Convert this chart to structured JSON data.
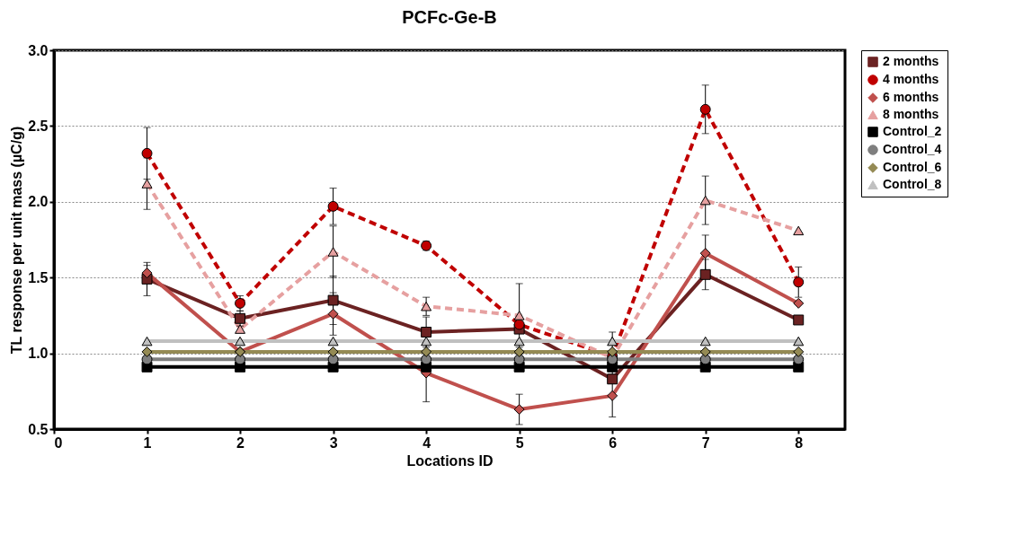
{
  "chart_data": {
    "type": "line",
    "title": "PCFc-Ge-B",
    "xlabel": "Locations ID",
    "ylabel": "TL response per unit mass (µC/g)",
    "x": [
      1,
      2,
      3,
      4,
      5,
      6,
      7,
      8
    ],
    "series": [
      {
        "name": "2 months",
        "color": "#6b2222",
        "marker": "square",
        "line_style": "solid",
        "values": [
          1.49,
          1.23,
          1.35,
          1.14,
          1.16,
          0.83,
          1.52,
          1.22
        ],
        "errors": [
          0.11,
          0.05,
          0.16,
          0.1,
          null,
          null,
          0.1,
          null
        ]
      },
      {
        "name": "4 months",
        "color": "#c00000",
        "marker": "circle",
        "line_style": "dashed",
        "values": [
          2.32,
          1.33,
          1.97,
          1.71,
          1.19,
          0.98,
          2.61,
          1.47
        ],
        "errors": [
          0.17,
          0.05,
          0.12,
          0.03,
          null,
          null,
          0.16,
          0.1
        ]
      },
      {
        "name": "6 months",
        "color": "#c0504d",
        "marker": "diamond",
        "line_style": "solid",
        "values": [
          1.53,
          1.01,
          1.26,
          0.87,
          0.63,
          0.72,
          1.66,
          1.33
        ],
        "errors": [
          0.05,
          null,
          0.14,
          0.19,
          0.1,
          0.14,
          0.12,
          null
        ]
      },
      {
        "name": "8 months",
        "color": "#e6a0a0",
        "marker": "triangle",
        "line_style": "dashed",
        "values": [
          2.12,
          1.16,
          1.67,
          1.31,
          1.25,
          0.97,
          2.01,
          1.81
        ],
        "errors": [
          0.17,
          null,
          0.17,
          0.06,
          0.21,
          0.17,
          0.16,
          null
        ]
      },
      {
        "name": "Control_2",
        "color": "#000000",
        "marker": "square",
        "line_style": "solid",
        "values": [
          0.91,
          0.91,
          0.91,
          0.91,
          0.91,
          0.91,
          0.91,
          0.91
        ]
      },
      {
        "name": "Control_4",
        "color": "#7f7f7f",
        "marker": "circle",
        "line_style": "solid",
        "values": [
          0.96,
          0.96,
          0.96,
          0.96,
          0.96,
          0.96,
          0.96,
          0.96
        ]
      },
      {
        "name": "Control_6",
        "color": "#948a54",
        "marker": "diamond",
        "line_style": "solid",
        "values": [
          1.01,
          1.01,
          1.01,
          1.01,
          1.01,
          1.01,
          1.01,
          1.01
        ]
      },
      {
        "name": "Control_8",
        "color": "#c0c0c0",
        "marker": "triangle",
        "line_style": "solid",
        "values": [
          1.08,
          1.08,
          1.08,
          1.08,
          1.08,
          1.08,
          1.08,
          1.08
        ]
      }
    ],
    "xlim": [
      0,
      8.5
    ],
    "xticks": [
      0,
      1,
      2,
      3,
      4,
      5,
      6,
      7,
      8
    ],
    "ylim": [
      0.5,
      3.0
    ],
    "yticks": [
      {
        "value": 0.5,
        "label": "0.5"
      },
      {
        "value": 1.0,
        "label": "1.0"
      },
      {
        "value": 1.5,
        "label": "1.5"
      },
      {
        "value": 2.0,
        "label": "2.0"
      },
      {
        "value": 2.5,
        "label": "2.5"
      },
      {
        "value": 3.0,
        "label": "3.0"
      }
    ],
    "grid": "y",
    "legend": "top right"
  }
}
